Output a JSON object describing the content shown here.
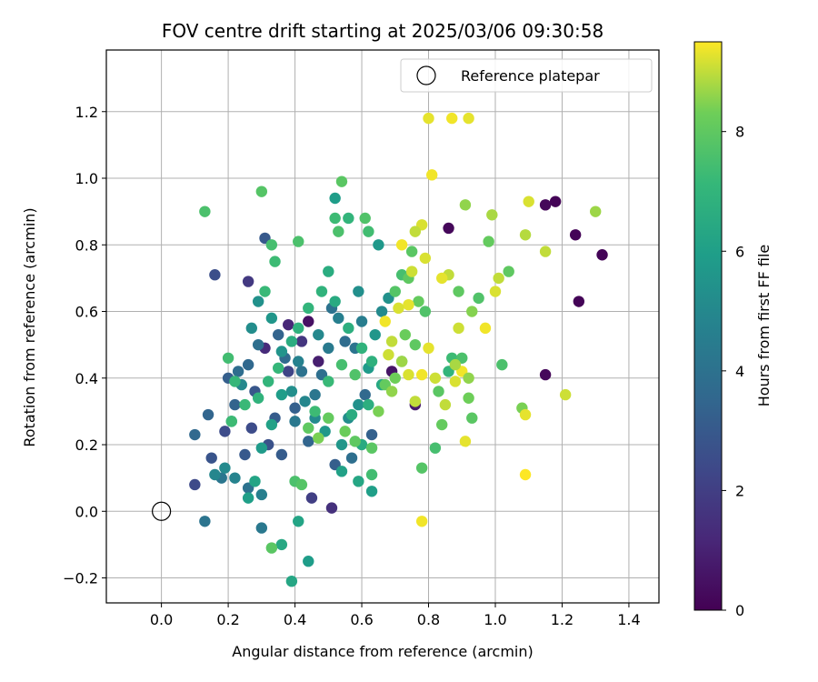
{
  "chart_data": {
    "type": "scatter",
    "title": "FOV centre drift starting at 2025/03/06 09:30:58",
    "xlabel": "Angular distance from reference (arcmin)",
    "ylabel": "Rotation from reference (arcmin)",
    "xlim": [
      -0.165,
      1.49
    ],
    "ylim": [
      -0.275,
      1.385
    ],
    "xticks": [
      "0.0",
      "0.2",
      "0.4",
      "0.6",
      "0.8",
      "1.0",
      "1.2",
      "1.4"
    ],
    "yticks": [
      "−0.2",
      "0.0",
      "0.2",
      "0.4",
      "0.6",
      "0.8",
      "1.0",
      "1.2"
    ],
    "grid": true,
    "legend": {
      "placement": "upper-right",
      "entries": [
        {
          "label": "Reference platepar",
          "marker": "open-circle",
          "x": 0.0,
          "y": 0.0
        }
      ]
    },
    "colorbar": {
      "label": "Hours from first FF file",
      "colormap": "viridis",
      "range": [
        0,
        9.5
      ],
      "ticks": [
        "0",
        "2",
        "4",
        "6",
        "8"
      ]
    },
    "points": [
      [
        1.18,
        0.93,
        0.1
      ],
      [
        1.15,
        0.92,
        0.2
      ],
      [
        1.24,
        0.83,
        0.1
      ],
      [
        1.32,
        0.77,
        0.1
      ],
      [
        1.25,
        0.63,
        0.1
      ],
      [
        1.15,
        0.41,
        0.2
      ],
      [
        0.86,
        0.85,
        0.2
      ],
      [
        0.44,
        0.57,
        0.5
      ],
      [
        0.47,
        0.45,
        0.9
      ],
      [
        0.69,
        0.42,
        0.6
      ],
      [
        0.76,
        0.32,
        0.8
      ],
      [
        0.38,
        0.56,
        1.2
      ],
      [
        0.31,
        0.49,
        1.3
      ],
      [
        0.51,
        0.01,
        1.5
      ],
      [
        0.45,
        0.04,
        2.0
      ],
      [
        0.26,
        0.69,
        1.8
      ],
      [
        0.16,
        0.71,
        2.6
      ],
      [
        0.1,
        0.08,
        2.4
      ],
      [
        0.19,
        0.24,
        2.5
      ],
      [
        0.15,
        0.16,
        2.8
      ],
      [
        0.31,
        0.82,
        3.0
      ],
      [
        0.42,
        0.51,
        1.7
      ],
      [
        0.38,
        0.42,
        2.2
      ],
      [
        0.28,
        0.36,
        2.9
      ],
      [
        0.25,
        0.17,
        3.0
      ],
      [
        0.32,
        0.2,
        2.7
      ],
      [
        0.27,
        0.25,
        2.5
      ],
      [
        0.34,
        0.28,
        3.1
      ],
      [
        0.4,
        0.31,
        3.3
      ],
      [
        0.22,
        0.32,
        3.4
      ],
      [
        0.2,
        0.4,
        3.2
      ],
      [
        0.14,
        0.29,
        3.5
      ],
      [
        0.1,
        0.23,
        3.6
      ],
      [
        0.13,
        -0.03,
        4.1
      ],
      [
        0.18,
        0.1,
        4.2
      ],
      [
        0.23,
        0.42,
        3.8
      ],
      [
        0.26,
        0.44,
        3.6
      ],
      [
        0.29,
        0.5,
        3.9
      ],
      [
        0.35,
        0.53,
        3.4
      ],
      [
        0.37,
        0.46,
        3.7
      ],
      [
        0.42,
        0.42,
        4.0
      ],
      [
        0.46,
        0.35,
        4.2
      ],
      [
        0.48,
        0.41,
        3.9
      ],
      [
        0.5,
        0.49,
        4.4
      ],
      [
        0.53,
        0.58,
        4.6
      ],
      [
        0.51,
        0.61,
        4.0
      ],
      [
        0.55,
        0.51,
        3.8
      ],
      [
        0.6,
        0.57,
        4.5
      ],
      [
        0.58,
        0.49,
        4.1
      ],
      [
        0.61,
        0.35,
        3.6
      ],
      [
        0.63,
        0.23,
        3.3
      ],
      [
        0.57,
        0.16,
        3.9
      ],
      [
        0.52,
        0.14,
        3.2
      ],
      [
        0.44,
        0.21,
        3.5
      ],
      [
        0.4,
        0.27,
        4.3
      ],
      [
        0.36,
        0.17,
        3.1
      ],
      [
        0.3,
        0.05,
        4.6
      ],
      [
        0.3,
        -0.05,
        4.3
      ],
      [
        0.26,
        0.07,
        4.0
      ],
      [
        0.22,
        0.1,
        4.8
      ],
      [
        0.19,
        0.13,
        5.1
      ],
      [
        0.16,
        0.11,
        4.9
      ],
      [
        0.21,
        0.27,
        5.3
      ],
      [
        0.24,
        0.38,
        5.0
      ],
      [
        0.27,
        0.55,
        5.2
      ],
      [
        0.29,
        0.63,
        5.4
      ],
      [
        0.33,
        0.58,
        5.6
      ],
      [
        0.36,
        0.48,
        5.5
      ],
      [
        0.39,
        0.36,
        5.3
      ],
      [
        0.43,
        0.33,
        4.9
      ],
      [
        0.46,
        0.28,
        5.1
      ],
      [
        0.49,
        0.24,
        5.7
      ],
      [
        0.54,
        0.2,
        5.6
      ],
      [
        0.56,
        0.28,
        5.2
      ],
      [
        0.59,
        0.32,
        5.4
      ],
      [
        0.62,
        0.43,
        5.8
      ],
      [
        0.64,
        0.53,
        5.6
      ],
      [
        0.66,
        0.6,
        5.1
      ],
      [
        0.68,
        0.64,
        5.4
      ],
      [
        0.65,
        0.8,
        5.7
      ],
      [
        0.52,
        0.94,
        5.9
      ],
      [
        0.59,
        0.66,
        5.3
      ],
      [
        0.47,
        0.53,
        5.0
      ],
      [
        0.41,
        0.45,
        4.7
      ],
      [
        0.36,
        0.35,
        5.9
      ],
      [
        0.33,
        0.26,
        6.1
      ],
      [
        0.3,
        0.19,
        5.8
      ],
      [
        0.28,
        0.09,
        6.2
      ],
      [
        0.26,
        0.04,
        6.0
      ],
      [
        0.41,
        -0.03,
        6.2
      ],
      [
        0.39,
        -0.21,
        6.3
      ],
      [
        0.36,
        -0.1,
        6.4
      ],
      [
        0.44,
        -0.15,
        5.9
      ],
      [
        0.54,
        0.12,
        6.1
      ],
      [
        0.59,
        0.09,
        6.3
      ],
      [
        0.63,
        0.06,
        6.0
      ],
      [
        0.6,
        0.2,
        6.5
      ],
      [
        0.57,
        0.29,
        6.6
      ],
      [
        0.62,
        0.32,
        6.7
      ],
      [
        0.66,
        0.38,
        6.4
      ],
      [
        0.63,
        0.45,
        6.8
      ],
      [
        0.6,
        0.49,
        6.9
      ],
      [
        0.56,
        0.55,
        6.7
      ],
      [
        0.52,
        0.63,
        6.5
      ],
      [
        0.5,
        0.72,
        6.6
      ],
      [
        0.48,
        0.66,
        6.9
      ],
      [
        0.44,
        0.61,
        7.0
      ],
      [
        0.41,
        0.55,
        6.8
      ],
      [
        0.39,
        0.51,
        6.6
      ],
      [
        0.35,
        0.43,
        7.1
      ],
      [
        0.32,
        0.39,
        7.0
      ],
      [
        0.29,
        0.34,
        6.9
      ],
      [
        0.25,
        0.32,
        7.2
      ],
      [
        0.22,
        0.39,
        7.1
      ],
      [
        0.21,
        0.27,
        7.3
      ],
      [
        0.2,
        0.46,
        7.4
      ],
      [
        0.31,
        0.66,
        7.2
      ],
      [
        0.34,
        0.75,
        7.3
      ],
      [
        0.33,
        0.8,
        7.5
      ],
      [
        0.41,
        0.81,
        7.6
      ],
      [
        0.56,
        0.88,
        7.0
      ],
      [
        0.53,
        0.84,
        7.6
      ],
      [
        0.52,
        0.88,
        7.3
      ],
      [
        0.62,
        0.84,
        7.4
      ],
      [
        0.61,
        0.88,
        7.7
      ],
      [
        0.3,
        0.96,
        7.8
      ],
      [
        0.13,
        0.9,
        7.6
      ],
      [
        0.54,
        0.99,
        7.9
      ],
      [
        0.7,
        0.66,
        7.8
      ],
      [
        0.72,
        0.71,
        7.5
      ],
      [
        0.74,
        0.7,
        8.0
      ],
      [
        0.75,
        0.78,
        7.9
      ],
      [
        0.77,
        0.63,
        8.1
      ],
      [
        0.79,
        0.6,
        7.7
      ],
      [
        0.73,
        0.53,
        8.2
      ],
      [
        0.76,
        0.5,
        8.0
      ],
      [
        0.72,
        0.45,
        7.8
      ],
      [
        0.7,
        0.4,
        8.3
      ],
      [
        0.67,
        0.38,
        8.1
      ],
      [
        0.65,
        0.3,
        8.4
      ],
      [
        0.63,
        0.19,
        7.9
      ],
      [
        0.58,
        0.21,
        8.0
      ],
      [
        0.55,
        0.24,
        8.2
      ],
      [
        0.5,
        0.28,
        8.1
      ],
      [
        0.47,
        0.22,
        8.4
      ],
      [
        0.44,
        0.25,
        8.0
      ],
      [
        0.4,
        0.09,
        7.6
      ],
      [
        0.42,
        0.08,
        7.8
      ],
      [
        0.33,
        -0.11,
        7.9
      ],
      [
        0.46,
        0.3,
        7.3
      ],
      [
        0.5,
        0.39,
        7.2
      ],
      [
        0.54,
        0.44,
        7.5
      ],
      [
        0.58,
        0.41,
        7.7
      ],
      [
        0.63,
        0.11,
        7.4
      ],
      [
        0.78,
        0.13,
        7.8
      ],
      [
        0.82,
        0.19,
        7.5
      ],
      [
        0.84,
        0.26,
        8.1
      ],
      [
        0.83,
        0.36,
        7.9
      ],
      [
        0.87,
        0.46,
        7.3
      ],
      [
        0.86,
        0.42,
        7.0
      ],
      [
        0.9,
        0.46,
        7.6
      ],
      [
        0.92,
        0.34,
        8.3
      ],
      [
        0.93,
        0.28,
        7.9
      ],
      [
        0.95,
        0.64,
        7.7
      ],
      [
        0.98,
        0.81,
        8.1
      ],
      [
        0.89,
        0.66,
        8.0
      ],
      [
        0.91,
        0.92,
        8.6
      ],
      [
        0.99,
        0.89,
        8.8
      ],
      [
        1.02,
        0.44,
        7.6
      ],
      [
        1.04,
        0.72,
        8.0
      ],
      [
        1.08,
        0.31,
        8.4
      ],
      [
        1.09,
        0.83,
        8.9
      ],
      [
        1.1,
        0.93,
        9.2
      ],
      [
        1.15,
        0.78,
        9.0
      ],
      [
        1.21,
        0.35,
        9.1
      ],
      [
        1.3,
        0.9,
        8.7
      ],
      [
        0.8,
        1.18,
        9.3
      ],
      [
        0.87,
        1.18,
        9.4
      ],
      [
        0.92,
        1.18,
        9.3
      ],
      [
        0.81,
        1.01,
        9.4
      ],
      [
        0.78,
        0.86,
        9.2
      ],
      [
        0.76,
        0.84,
        9.0
      ],
      [
        0.75,
        0.72,
        9.1
      ],
      [
        0.72,
        0.8,
        9.4
      ],
      [
        0.74,
        0.62,
        9.3
      ],
      [
        0.71,
        0.61,
        9.2
      ],
      [
        0.69,
        0.51,
        9.0
      ],
      [
        0.67,
        0.57,
        9.4
      ],
      [
        0.68,
        0.47,
        9.1
      ],
      [
        0.74,
        0.41,
        9.2
      ],
      [
        0.76,
        0.33,
        9.0
      ],
      [
        0.78,
        0.41,
        9.4
      ],
      [
        0.8,
        0.49,
        9.3
      ],
      [
        0.82,
        0.4,
        9.1
      ],
      [
        0.85,
        0.32,
        9.0
      ],
      [
        0.88,
        0.39,
        9.2
      ],
      [
        0.9,
        0.42,
        9.4
      ],
      [
        0.91,
        0.21,
        9.3
      ],
      [
        0.89,
        0.55,
        9.1
      ],
      [
        0.86,
        0.71,
        9.0
      ],
      [
        0.84,
        0.7,
        9.3
      ],
      [
        0.79,
        0.76,
        9.2
      ],
      [
        0.97,
        0.55,
        9.4
      ],
      [
        1.0,
        0.66,
        9.2
      ],
      [
        1.01,
        0.7,
        9.0
      ],
      [
        1.09,
        0.29,
        9.3
      ],
      [
        1.09,
        0.11,
        9.5
      ],
      [
        0.78,
        -0.03,
        9.4
      ],
      [
        0.93,
        0.6,
        8.5
      ],
      [
        0.92,
        0.4,
        8.6
      ],
      [
        0.88,
        0.44,
        8.8
      ],
      [
        0.72,
        0.45,
        8.7
      ],
      [
        0.69,
        0.36,
        8.6
      ]
    ]
  }
}
